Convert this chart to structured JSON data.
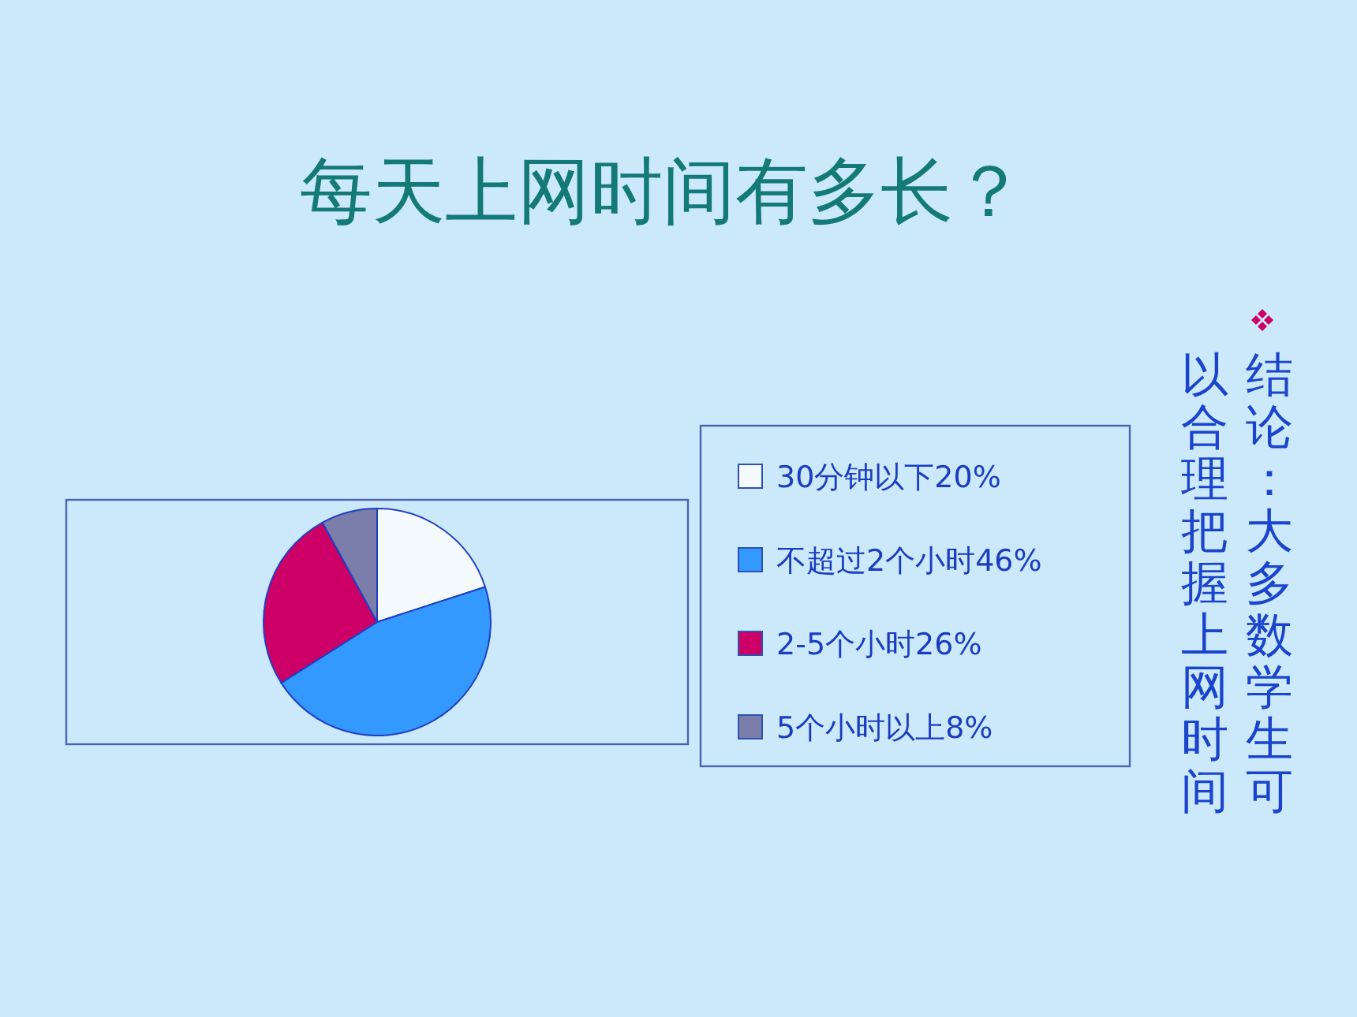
{
  "chart_data": {
    "type": "pie",
    "title": "每天上网时间有多长？",
    "categories": [
      "30分钟以下20%",
      "不超过2个小时46%",
      "2-5个小时26%",
      "5个小时以上8%"
    ],
    "values": [
      20,
      46,
      26,
      8
    ],
    "colors": [
      "#f5faff",
      "#3399ff",
      "#cc0066",
      "#7b7dab"
    ],
    "legend": "right",
    "annotations": [
      "结论：大多数学生可以合理把握上网时间"
    ]
  }
}
